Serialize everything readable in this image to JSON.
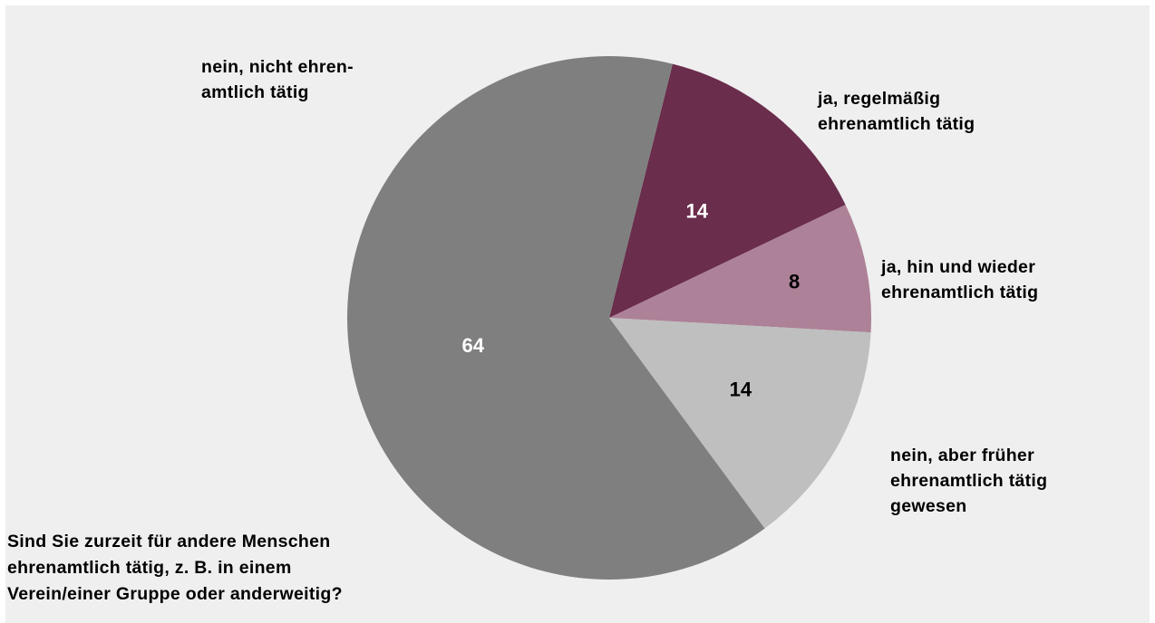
{
  "question": "Sind Sie zurzeit für andere Menschen\nehrenamtlich tätig, z. B. in einem\nVerein/einer Gruppe oder anderweitig?",
  "chart_data": {
    "type": "pie",
    "unit": "",
    "slices": [
      {
        "label": "ja, regelmäßig\nehrenamtlich tätig",
        "value": 14,
        "value_label": "14",
        "color": "#6a2d4c",
        "text_color": "#ffffff"
      },
      {
        "label": "ja, hin und wieder\nehrenamtlich tätig",
        "value": 8,
        "value_label": "8",
        "color": "#ad8197",
        "text_color": "#000000"
      },
      {
        "label": "nein, aber früher\nehrenamtlich tätig\ngewesen",
        "value": 14,
        "value_label": "14",
        "color": "#bfbfbf",
        "text_color": "#000000"
      },
      {
        "label": "nein, nicht ehren-\namtlich tätig",
        "value": 64,
        "value_label": "64",
        "color": "#7f7f7f",
        "text_color": "#ffffff"
      }
    ]
  }
}
